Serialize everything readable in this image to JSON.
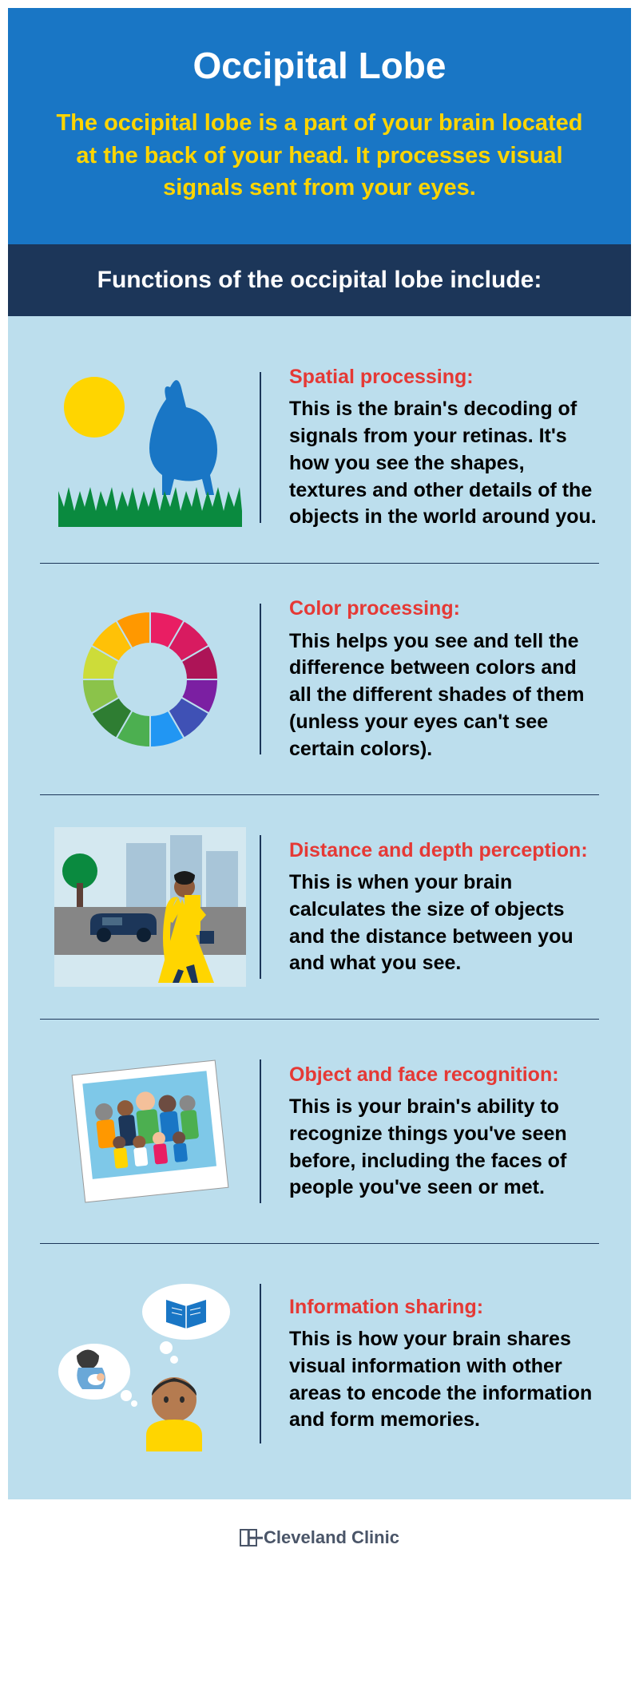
{
  "header": {
    "title": "Occipital Lobe",
    "subtitle": "The occipital lobe is a part of your brain located at the back of your head. It processes visual signals sent from your eyes."
  },
  "functions_bar": "Functions of the occipital lobe include:",
  "colors": {
    "header_bg": "#1976c5",
    "title_color": "#ffffff",
    "subtitle_color": "#ffd500",
    "funcbar_bg": "#1c3659",
    "content_bg": "#bcdeed",
    "item_title_color": "#e53935",
    "sun_yellow": "#ffd500",
    "rabbit_blue": "#1976c5",
    "grass_green": "#0a8a3f"
  },
  "color_wheel": [
    "#e91e63",
    "#d81b60",
    "#ad1457",
    "#7b1fa2",
    "#3f51b5",
    "#2196f3",
    "#4caf50",
    "#2e7d32",
    "#8bc34a",
    "#cddc39",
    "#ffc107",
    "#ff9800"
  ],
  "items": [
    {
      "icon": "spatial",
      "title": "Spatial processing:",
      "desc": "This is the brain's decoding of signals from your retinas. It's how you see the shapes, textures and other details of the objects in the world around you."
    },
    {
      "icon": "color",
      "title": "Color processing:",
      "desc": "This helps you see and tell the difference between colors and all the different shades of them (unless your eyes can't see certain colors)."
    },
    {
      "icon": "distance",
      "title": "Distance and depth perception:",
      "desc": "This is when your brain calculates the size of objects and the distance between you and what you see."
    },
    {
      "icon": "recognition",
      "title": "Object and face recognition:",
      "desc": "This is your brain's ability to recognize things you've seen before, including the faces of people you've seen or met."
    },
    {
      "icon": "sharing",
      "title": "Information sharing:",
      "desc": "This is how your brain shares visual information with other areas to encode the information and form memories."
    }
  ],
  "footer": {
    "brand": "Cleveland Clinic"
  }
}
